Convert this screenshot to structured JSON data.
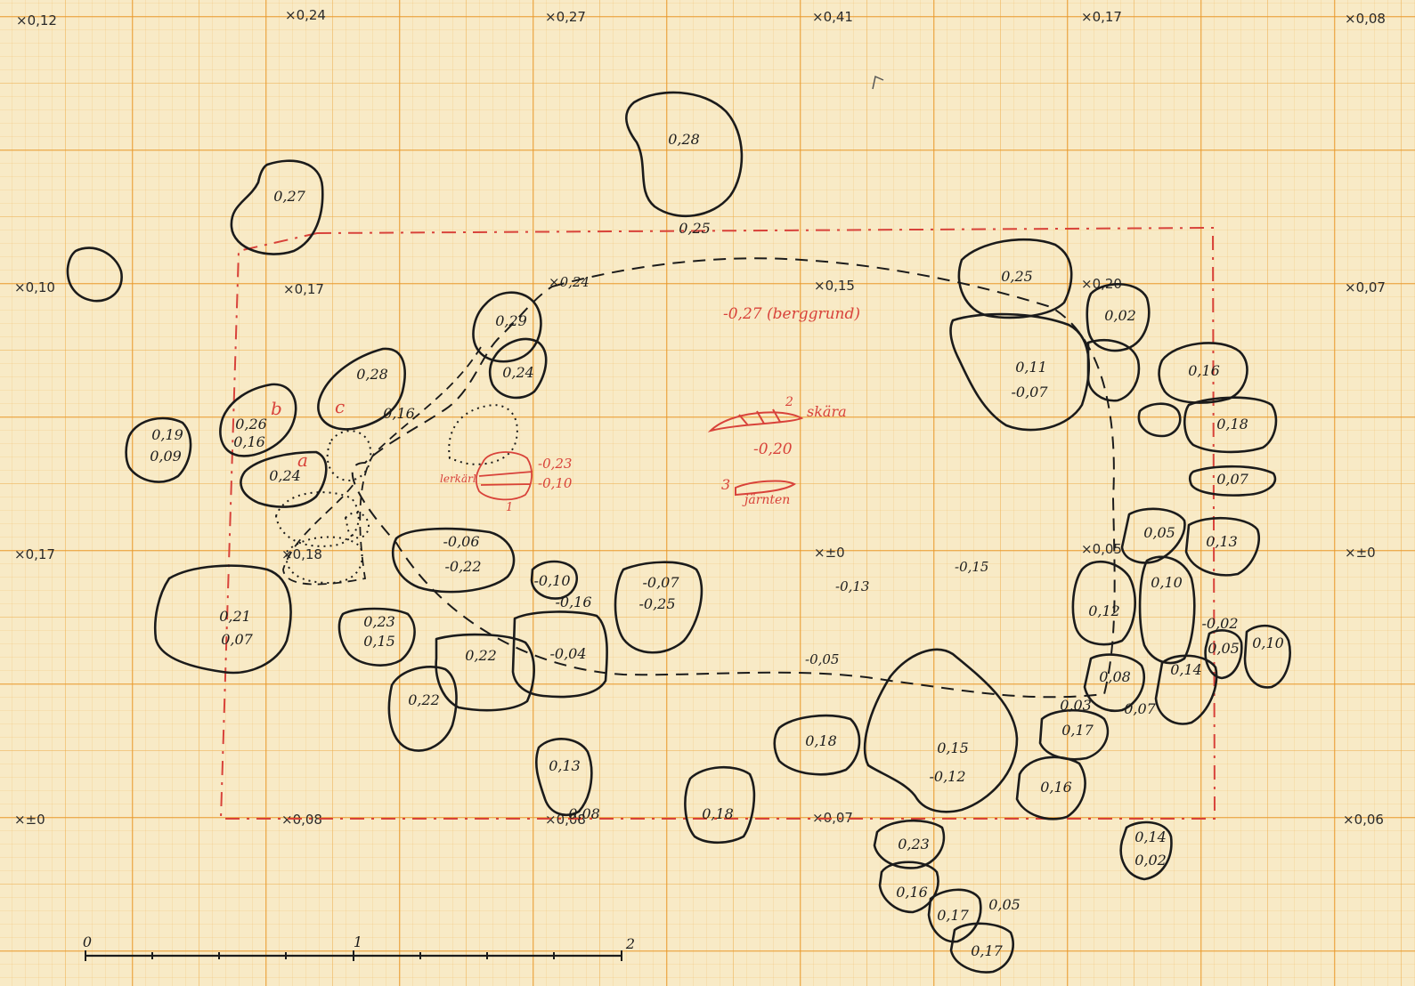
{
  "grid_marks": [
    "0,12",
    "0,24",
    "0,27",
    "0,41",
    "0,17",
    "0,08",
    "0,10",
    "0,17",
    "0,15",
    "0,20",
    "0,07",
    "0,17",
    "0,18",
    "±0",
    "0,05",
    "±0",
    "±0",
    "0,08",
    "0,08",
    "0,07",
    "0,06"
  ],
  "stones": [
    "0,28",
    "0,27",
    "0,25",
    "0,29",
    "0,24",
    "0,28",
    "0,26",
    "0,16",
    "0,19",
    "0,09",
    "0,24",
    "0,16",
    "0,25",
    "0,02",
    "0,11",
    "-0,07",
    "0,16",
    "0,18",
    "0,07",
    "-0,06",
    "-0,22",
    "-0,10",
    "-0,16",
    "-0,07",
    "-0,25",
    "0,21",
    "0,07",
    "0,23",
    "0,15",
    "0,22",
    "-0,04",
    "0,22",
    "0,13",
    "0,08",
    "0,18",
    "0,05",
    "0,13",
    "0,10",
    "0,12",
    "-0,02",
    "0,05",
    "0,10",
    "0,08",
    "0,14",
    "0,07",
    "0,03",
    "0,17",
    "0,15",
    "-0,12",
    "0,18",
    "0,16",
    "0,23",
    "0,14",
    "0,02",
    "0,16",
    "0,17",
    "0,05",
    "0,17"
  ],
  "levels": [
    "0,24",
    "0,18",
    "-0,13",
    "-0,15",
    "-0,05"
  ],
  "red_notes": {
    "bedrock": "-0,27 (berggrund)",
    "sickle": "skära",
    "sickle_num": "2",
    "sickle_level": "-0,20",
    "iron": "järnten",
    "iron_num": "3",
    "pot": "lerkärl",
    "pot_num": "1",
    "pot_lvl1": "-0,23",
    "pot_lvl2": "-0,10",
    "letters": [
      "a",
      "b",
      "c"
    ]
  },
  "scale": {
    "labels": [
      "0",
      "1",
      "2"
    ]
  }
}
